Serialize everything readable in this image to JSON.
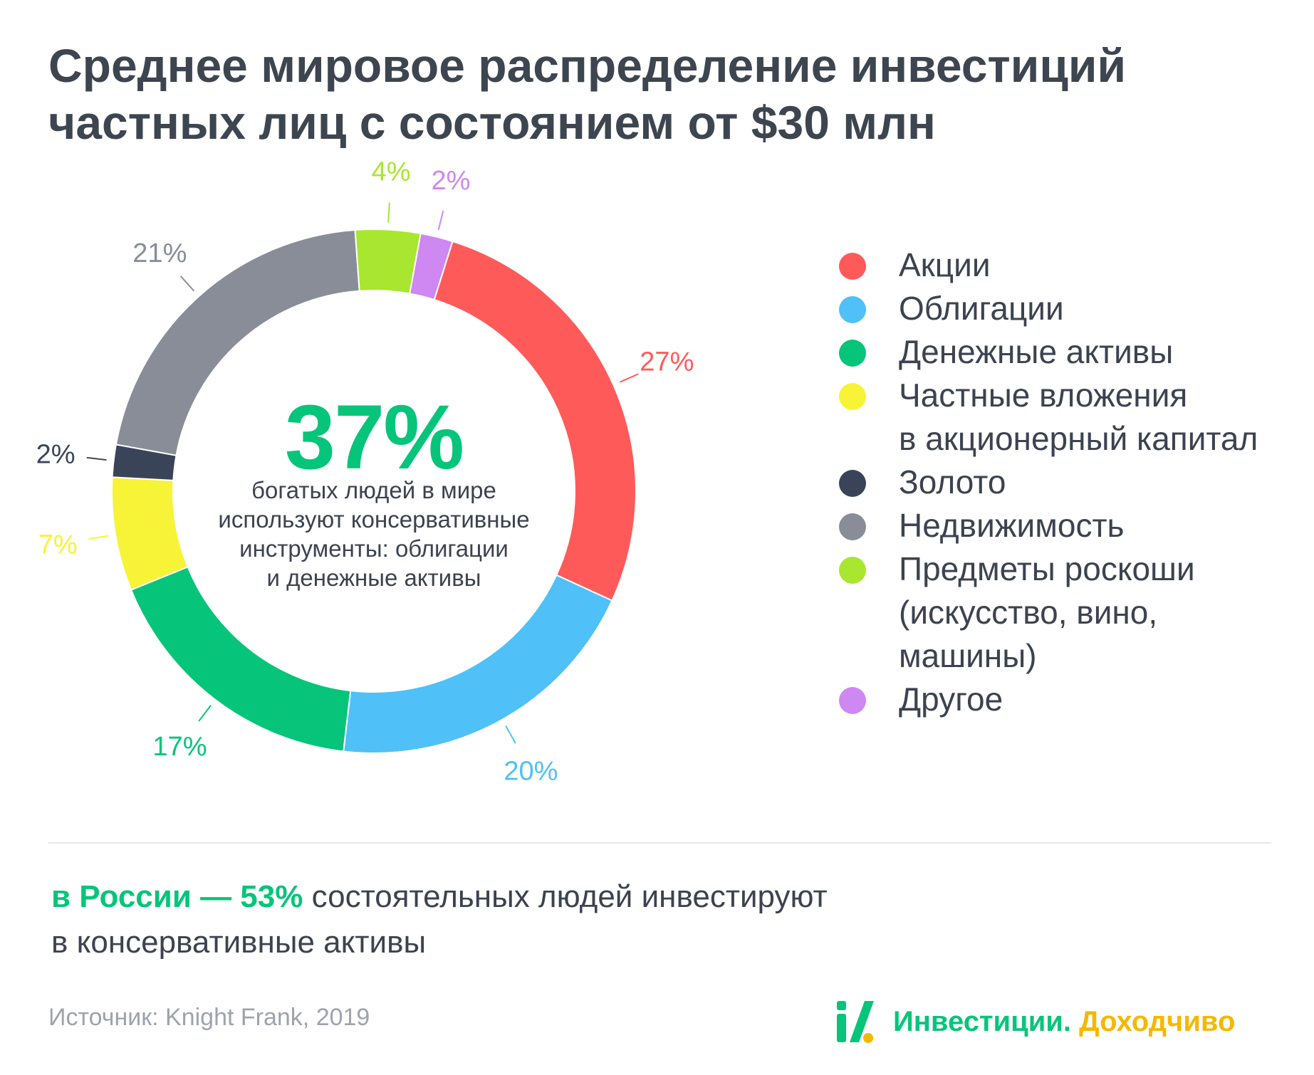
{
  "title": {
    "line1": "Среднее мировое распределение инвестиций",
    "line2": "частных лиц с состоянием от $30 млн"
  },
  "center": {
    "big": "37%",
    "line1": "богатых людей в мире",
    "line2": "используют консервативные",
    "line3": "инструменты: облигации",
    "line4": "и денежные активы"
  },
  "chart_data": {
    "type": "pie",
    "donut": true,
    "title": "Среднее мировое распределение инвестиций частных лиц с состоянием от $30 млн",
    "legend_position": "right",
    "series": [
      {
        "name": "Акции",
        "value": 27,
        "label": "27%",
        "color": "#ff5a5a"
      },
      {
        "name": "Облигации",
        "value": 20,
        "label": "20%",
        "color": "#4fc0f8"
      },
      {
        "name": "Денежные активы",
        "value": 17,
        "label": "17%",
        "color": "#06c57a"
      },
      {
        "name": "Частные вложения в акционерный капитал",
        "value": 7,
        "label": "7%",
        "color": "#f7f336"
      },
      {
        "name": "Золото",
        "value": 2,
        "label": "2%",
        "color": "#3a4459"
      },
      {
        "name": "Недвижимость",
        "value": 21,
        "label": "21%",
        "color": "#888d98"
      },
      {
        "name": "Предметы роскоши (искусство, вино, машины)",
        "value": 4,
        "label": "4%",
        "color": "#a8e630"
      },
      {
        "name": "Другое",
        "value": 2,
        "label": "2%",
        "color": "#cf87f2"
      }
    ]
  },
  "legend": [
    {
      "lines": [
        "Акции"
      ],
      "color": "#ff5a5a",
      "icon": "legend-dot"
    },
    {
      "lines": [
        "Облигации"
      ],
      "color": "#4fc0f8",
      "icon": "legend-dot"
    },
    {
      "lines": [
        "Денежные активы"
      ],
      "color": "#06c57a",
      "icon": "legend-dot"
    },
    {
      "lines": [
        "Частные вложения",
        "в акционерный капитал"
      ],
      "color": "#f7f336",
      "icon": "legend-dot"
    },
    {
      "lines": [
        "Золото"
      ],
      "color": "#3a4459",
      "icon": "legend-dot"
    },
    {
      "lines": [
        "Недвижимость"
      ],
      "color": "#888d98",
      "icon": "legend-dot"
    },
    {
      "lines": [
        "Предметы роскоши",
        "(искусство, вино,",
        "машины)"
      ],
      "color": "#a8e630",
      "icon": "legend-dot"
    },
    {
      "lines": [
        "Другое"
      ],
      "color": "#cf87f2",
      "icon": "legend-dot"
    }
  ],
  "note": {
    "highlight": "в России — 53%",
    "rest_line1": " состоятельных людей инвестируют",
    "line2": "в консервативные активы"
  },
  "source": "Источник: Knight Frank, 2019",
  "brand": {
    "part1": "Инвестиции.",
    "part2": "Доходчиво",
    "logo_icon": "brand-logo-icon"
  },
  "colors": {
    "accent": "#06c57a",
    "brand_yellow": "#f5b800",
    "text": "#3d4250"
  }
}
